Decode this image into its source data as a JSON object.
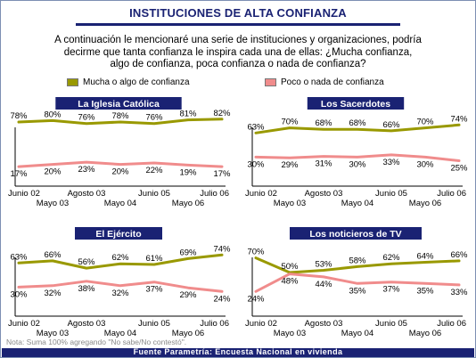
{
  "header": {
    "title": "INSTITUCIONES DE ALTA CONFIANZA",
    "question": "A continuación le mencionaré una serie de instituciones y organizaciones, podría decirme que tanta confianza le inspira cada una de ellas: ¿Mucha confianza, algo de confianza, poca confianza o nada de confianza?"
  },
  "legend": {
    "high_label": "Mucha o algo de confianza",
    "low_label": "Poco o nada de confianza"
  },
  "colors": {
    "high": "#999900",
    "low": "#f08c8c",
    "header_bg": "#1a2273",
    "axis": "#000000"
  },
  "chart_data": [
    {
      "type": "line",
      "title": "La Iglesia Católica",
      "x": [
        "Junio 02",
        "Mayo 03",
        "Agosto 03",
        "Mayo 04",
        "Junio 05",
        "Mayo 06",
        "Julio 06"
      ],
      "ylim": [
        0,
        100
      ],
      "grid": false,
      "series": [
        {
          "name": "Mucha o algo de confianza",
          "values": [
            78,
            80,
            76,
            78,
            76,
            81,
            82
          ],
          "labels": [
            "78%",
            "80%",
            "76%",
            "78%",
            "76%",
            "81%",
            "82%"
          ]
        },
        {
          "name": "Poco o nada de confianza",
          "values": [
            17,
            20,
            23,
            20,
            22,
            19,
            17
          ],
          "labels": [
            "17%",
            "20%",
            "23%",
            "20%",
            "22%",
            "19%",
            "17%"
          ]
        }
      ]
    },
    {
      "type": "line",
      "title": "Los Sacerdotes",
      "x": [
        "Junio 02",
        "Mayo 03",
        "Agosto 03",
        "Mayo 04",
        "Junio 05",
        "Mayo 06",
        "Julio 06"
      ],
      "ylim": [
        0,
        100
      ],
      "grid": false,
      "series": [
        {
          "name": "Mucha o algo de confianza",
          "values": [
            63,
            70,
            68,
            68,
            66,
            70,
            74
          ],
          "labels": [
            "63%",
            "70%",
            "68%",
            "68%",
            "66%",
            "70%",
            "74%"
          ]
        },
        {
          "name": "Poco o nada de confianza",
          "values": [
            30,
            29,
            31,
            30,
            33,
            30,
            25
          ],
          "labels": [
            "30%",
            "29%",
            "31%",
            "30%",
            "33%",
            "30%",
            "25%"
          ]
        }
      ]
    },
    {
      "type": "line",
      "title": "El Ejército",
      "x": [
        "Junio 02",
        "Mayo 03",
        "Agosto 03",
        "Mayo 04",
        "Junio 05",
        "Mayo 06",
        "Julio 06"
      ],
      "ylim": [
        0,
        100
      ],
      "grid": false,
      "series": [
        {
          "name": "Mucha o algo de confianza",
          "values": [
            63,
            66,
            56,
            62,
            61,
            69,
            74
          ],
          "labels": [
            "63%",
            "66%",
            "56%",
            "62%",
            "61%",
            "69%",
            "74%"
          ]
        },
        {
          "name": "Poco o nada de confianza",
          "values": [
            30,
            32,
            38,
            32,
            37,
            29,
            24
          ],
          "labels": [
            "30%",
            "32%",
            "38%",
            "32%",
            "37%",
            "29%",
            "24%"
          ]
        }
      ]
    },
    {
      "type": "line",
      "title": "Los noticieros de TV",
      "x": [
        "Junio 02",
        "Mayo 03",
        "Agosto 03",
        "Mayo 04",
        "Junio 05",
        "Mayo 06",
        "Julio 06"
      ],
      "ylim": [
        0,
        100
      ],
      "grid": false,
      "series": [
        {
          "name": "Mucha o algo de confianza",
          "values": [
            70,
            50,
            53,
            58,
            62,
            64,
            66
          ],
          "labels": [
            "70%",
            "50%",
            "53%",
            "58%",
            "62%",
            "64%",
            "66%"
          ]
        },
        {
          "name": "Poco o nada de confianza",
          "values": [
            24,
            48,
            44,
            35,
            37,
            35,
            33
          ],
          "labels": [
            "24%",
            "48%",
            "44%",
            "35%",
            "37%",
            "35%",
            "33%"
          ]
        }
      ]
    }
  ],
  "footer": {
    "note": "Nota: Suma 100% agregando \"No sabe/No contestó\".",
    "source": "Fuente Parametría: Encuesta Nacional en vivienda"
  }
}
